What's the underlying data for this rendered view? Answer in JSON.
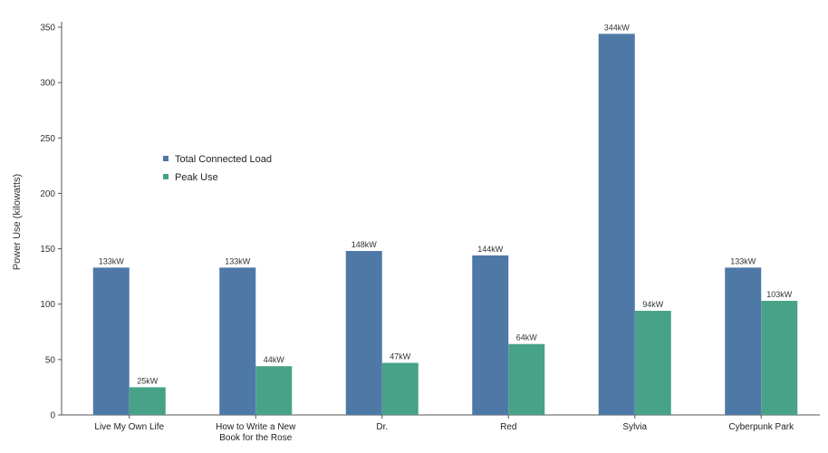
{
  "chart_data": {
    "type": "bar",
    "categories": [
      "Live My Own Life",
      "How to Write a New Book for the Rose",
      "Dr.",
      "Red",
      "Sylvia",
      "Cyberpunk Park"
    ],
    "series": [
      {
        "name": "Total Connected Load",
        "values": [
          133,
          133,
          148,
          144,
          344,
          133
        ],
        "labels": [
          "133kW",
          "133kW",
          "148kW",
          "144kW",
          "344kW",
          "133kW"
        ],
        "color": "#4e79a7"
      },
      {
        "name": "Peak Use",
        "values": [
          25,
          44,
          47,
          64,
          94,
          103
        ],
        "labels": [
          "25kW",
          "44kW",
          "47kW",
          "64kW",
          "94kW",
          "103kW"
        ],
        "color": "#47a287"
      }
    ],
    "title": "",
    "xlabel": "",
    "ylabel": "Power Use (kilowatts)",
    "ylim": [
      0,
      350
    ],
    "yticks": [
      0,
      50,
      100,
      150,
      200,
      250,
      300,
      350
    ],
    "grid": false,
    "legend": "upper-left"
  }
}
